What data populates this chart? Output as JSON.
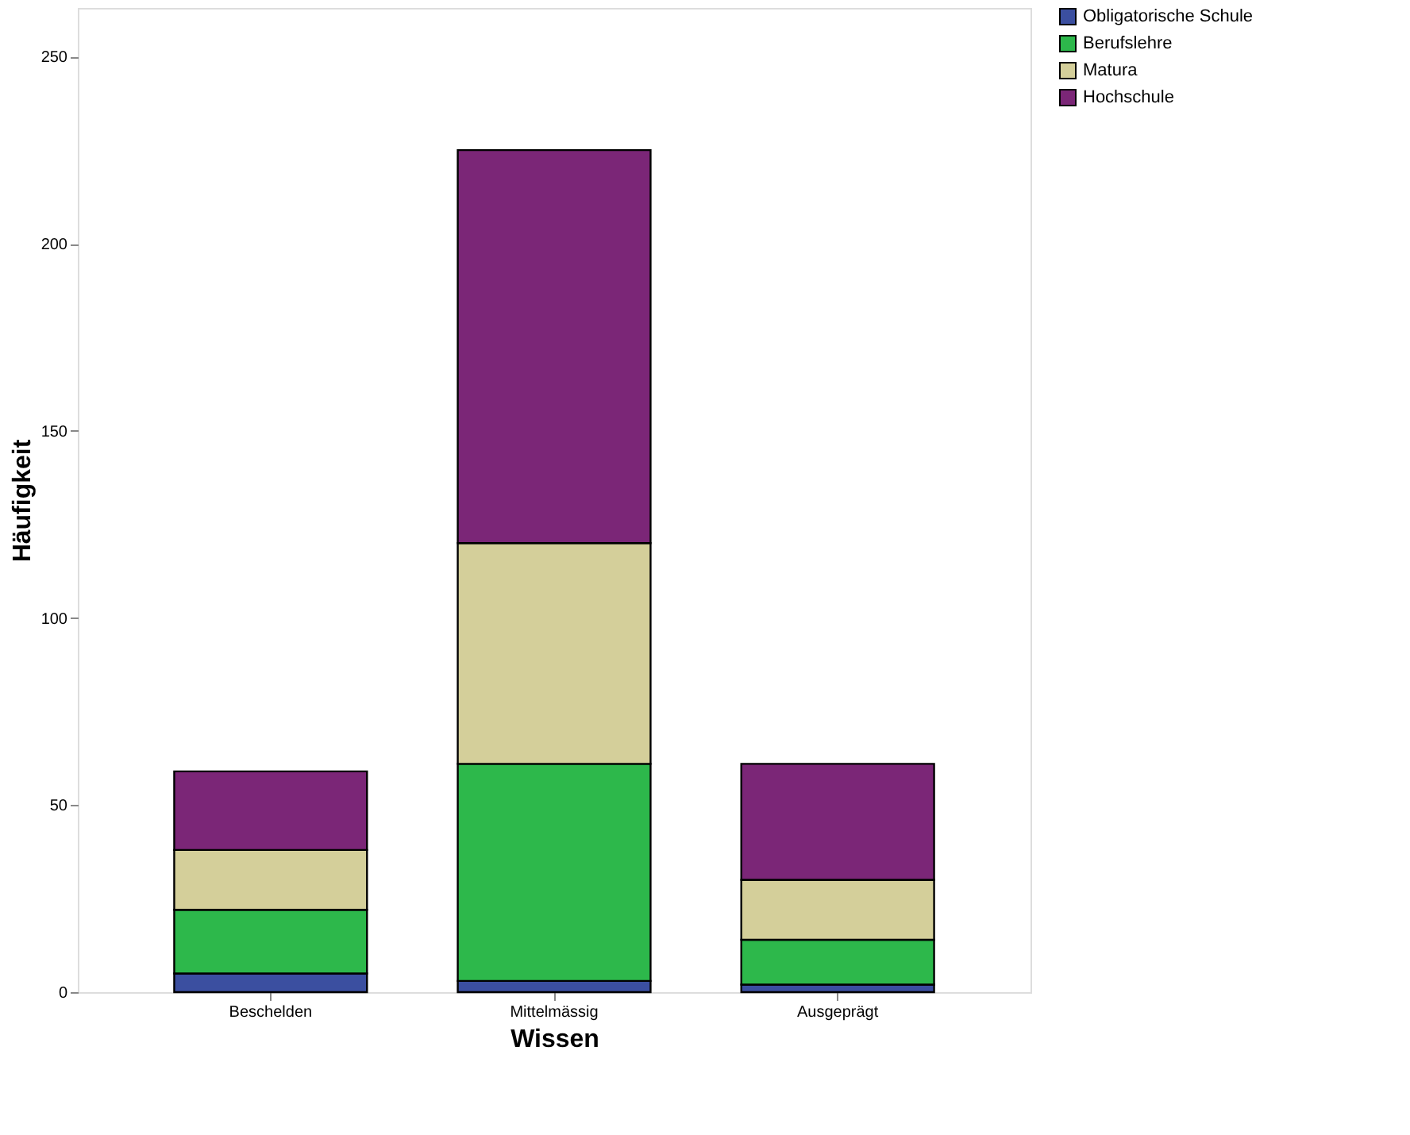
{
  "chart_data": {
    "type": "bar",
    "stacked": true,
    "xlabel": "Wissen",
    "ylabel": "Häufigkeit",
    "categories": [
      "Beschelden",
      "Mittelmässig",
      "Ausgeprägt"
    ],
    "series": [
      {
        "name": "Obligatorische Schule",
        "color": "#3b4fa0",
        "values": [
          5,
          3,
          2
        ]
      },
      {
        "name": "Berufslehre",
        "color": "#2db84b",
        "values": [
          17,
          58,
          12
        ]
      },
      {
        "name": "Matura",
        "color": "#d4cf9a",
        "values": [
          16,
          59,
          16
        ]
      },
      {
        "name": "Hochschule",
        "color": "#7b2677",
        "values": [
          21,
          105,
          31
        ]
      }
    ],
    "ylim": [
      0,
      263
    ],
    "yticks": [
      0,
      50,
      100,
      150,
      200,
      250
    ],
    "grid": false,
    "legend": "top right"
  }
}
